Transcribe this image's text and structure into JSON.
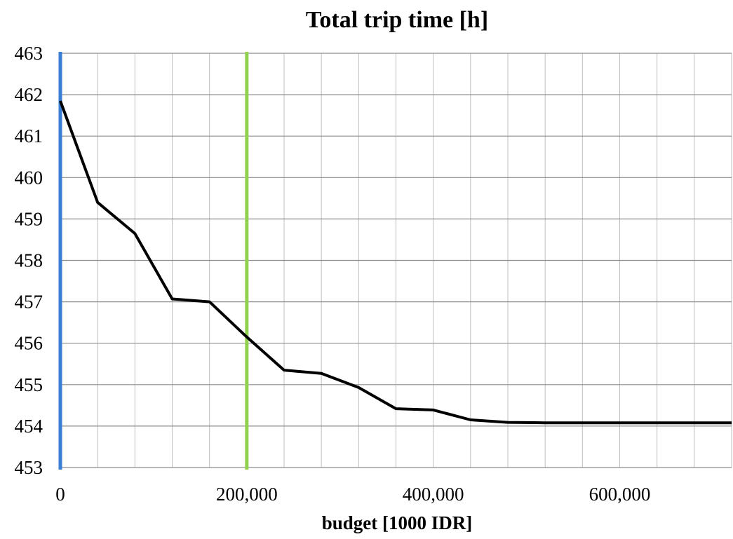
{
  "chart_data": {
    "type": "line",
    "title": "Total trip time [h]",
    "xlabel": "budget [1000 IDR]",
    "ylabel": "",
    "xlim": [
      0,
      720000
    ],
    "ylim": [
      453,
      463
    ],
    "grid": true,
    "x_tick_values": [
      0,
      200000,
      400000,
      600000
    ],
    "x_tick_labels": [
      "0",
      "200,000",
      "400,000",
      "600,000"
    ],
    "x_minor_grid_step": 40000,
    "y_tick_values": [
      453,
      454,
      455,
      456,
      457,
      458,
      459,
      460,
      461,
      462,
      463
    ],
    "y_tick_labels": [
      "453",
      "454",
      "455",
      "456",
      "457",
      "458",
      "459",
      "460",
      "461",
      "462",
      "463"
    ],
    "series": [
      {
        "color": "#000000",
        "x": [
          0,
          40000,
          80000,
          120000,
          160000,
          200000,
          240000,
          280000,
          320000,
          360000,
          400000,
          440000,
          480000,
          520000,
          560000,
          600000,
          640000,
          680000,
          720000
        ],
        "y": [
          461.85,
          459.4,
          458.65,
          457.07,
          457.0,
          456.15,
          455.35,
          455.27,
          454.93,
          454.42,
          454.39,
          454.15,
          454.09,
          454.08,
          454.08,
          454.08,
          454.08,
          454.08,
          454.08
        ]
      }
    ],
    "vertical_lines": [
      {
        "x": 0,
        "color": "#3a7fd5"
      },
      {
        "x": 200000,
        "color": "#92d050"
      }
    ]
  }
}
